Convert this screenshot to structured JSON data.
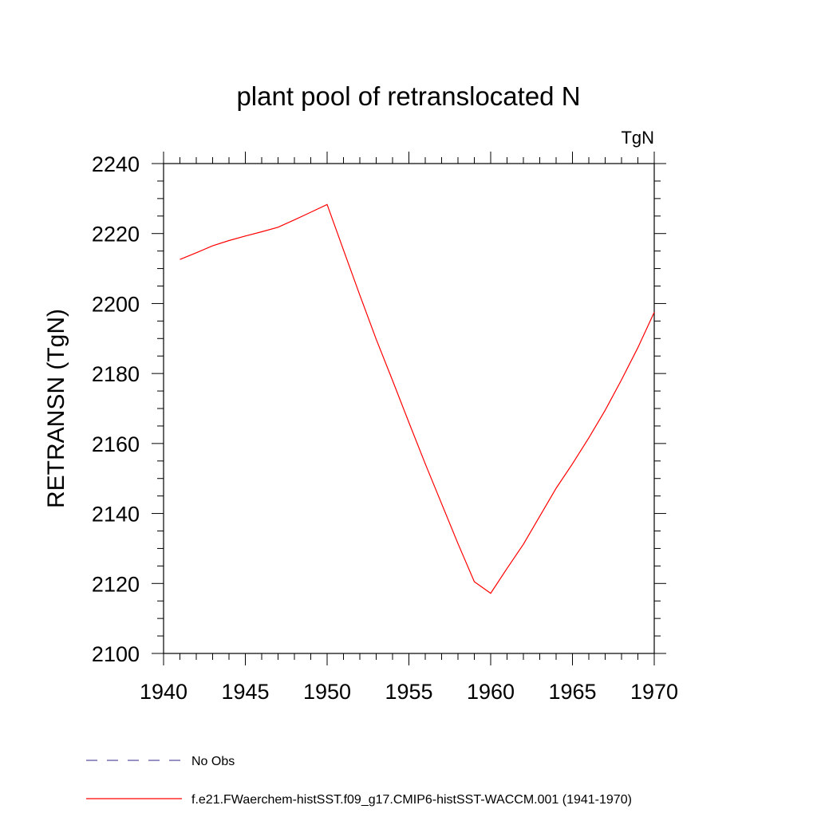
{
  "chart_data": {
    "type": "line",
    "title": "plant pool of retranslocated N",
    "units_label": "TgN",
    "ylabel": "RETRANSN  (TgN)",
    "xlabel": "",
    "xlim": [
      1940,
      1970
    ],
    "ylim": [
      2100,
      2240
    ],
    "x_ticks": [
      1940,
      1945,
      1950,
      1955,
      1960,
      1965,
      1970
    ],
    "y_ticks": [
      2100,
      2120,
      2140,
      2160,
      2180,
      2200,
      2220,
      2240
    ],
    "grid": false,
    "legend_position": "bottom-left",
    "legend": [
      {
        "label": "No Obs",
        "style": "dashed",
        "color": "#5b4fa0"
      },
      {
        "label": "f.e21.FWaerchem-histSST.f09_g17.CMIP6-histSST-WACCM.001 (1941-1970)",
        "style": "solid",
        "color": "#ff0000"
      }
    ],
    "series": [
      {
        "name": "f.e21.FWaerchem-histSST.f09_g17.CMIP6-histSST-WACCM.001 (1941-1970)",
        "color": "#ff0000",
        "x": [
          1941,
          1942,
          1943,
          1944,
          1945,
          1946,
          1947,
          1948,
          1949,
          1950,
          1951,
          1952,
          1953,
          1954,
          1955,
          1956,
          1957,
          1958,
          1959,
          1960,
          1961,
          1962,
          1963,
          1964,
          1965,
          1966,
          1967,
          1968,
          1969,
          1970
        ],
        "y": [
          2212.6,
          2214.5,
          2216.5,
          2218.0,
          2219.3,
          2220.5,
          2221.8,
          2223.9,
          2226.1,
          2228.3,
          2215.3,
          2202.4,
          2189.8,
          2178.0,
          2166.0,
          2154.2,
          2142.8,
          2131.4,
          2120.5,
          2117.2,
          2124.3,
          2131.2,
          2139.2,
          2147.2,
          2154.2,
          2161.6,
          2169.5,
          2178.2,
          2187.4,
          2197.5
        ]
      }
    ]
  }
}
